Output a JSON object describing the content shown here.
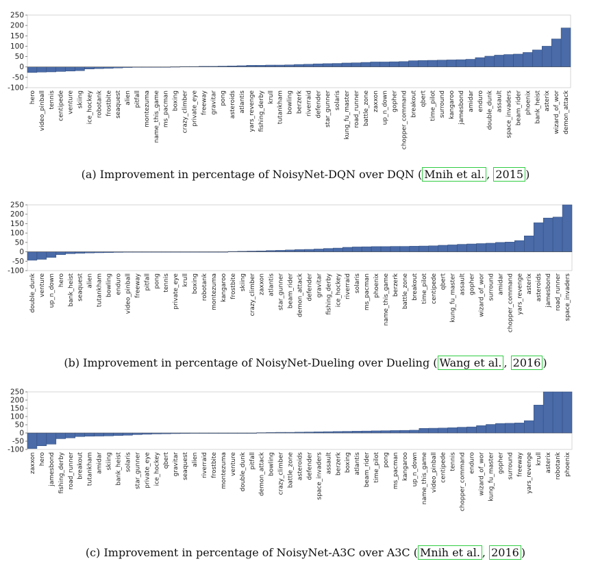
{
  "chart_data": [
    {
      "type": "bar",
      "ylim": [
        -100,
        250
      ],
      "yticks": [
        -100,
        -50,
        0,
        50,
        100,
        150,
        200,
        250
      ],
      "bar_color": "#4a6ba8",
      "caption": {
        "prefix": "(a) Improvement in percentage of NoisyNet-DQN over DQN (",
        "cite": [
          "Mnih et al.",
          "2015"
        ],
        "suffix": ")"
      },
      "categories": [
        "hero",
        "video_pinball",
        "tennis",
        "centipede",
        "venture",
        "skiing",
        "ice_hockey",
        "robotank",
        "frostbite",
        "seaquest",
        "alien",
        "pitfall",
        "montezuma",
        "name_this_game",
        "ms_pacman",
        "boxing",
        "crazy_climber",
        "private_eye",
        "freeway",
        "gravitar",
        "pong",
        "asteroids",
        "atlantis",
        "yars_revenge",
        "fishing_derby",
        "krull",
        "tutankham",
        "bowling",
        "berzerk",
        "riverraid",
        "defender",
        "star_gunner",
        "solaris",
        "kung_fu_master",
        "road_runner",
        "battle_zone",
        "zaxxon",
        "up_n_down",
        "gopher",
        "chopper_command",
        "breakout",
        "qbert",
        "time_pilot",
        "surround",
        "kangaroo",
        "jamesbond",
        "amidar",
        "enduro",
        "double_dunk",
        "assault",
        "space_invaders",
        "beam_rider",
        "phoenix",
        "bank_heist",
        "asterix",
        "wizard_of_wor",
        "demon_attack"
      ],
      "values": [
        -27,
        -25,
        -24,
        -22,
        -20,
        -18,
        -10,
        -8,
        -7,
        -5,
        -3,
        -1,
        0,
        0,
        0,
        1,
        2,
        2,
        3,
        3,
        4,
        5,
        6,
        8,
        8,
        9,
        9,
        10,
        12,
        13,
        15,
        16,
        17,
        19,
        20,
        22,
        24,
        24,
        25,
        26,
        30,
        31,
        32,
        33,
        34,
        35,
        37,
        45,
        52,
        57,
        60,
        62,
        70,
        82,
        100,
        135,
        188
      ]
    },
    {
      "type": "bar",
      "ylim": [
        -100,
        250
      ],
      "yticks": [
        -100,
        -50,
        0,
        50,
        100,
        150,
        200,
        250
      ],
      "bar_color": "#4a6ba8",
      "caption": {
        "prefix": "(b) Improvement in percentage of NoisyNet-Dueling over Dueling (",
        "cite": [
          "Wang et al.",
          "2016"
        ],
        "suffix": ")"
      },
      "categories": [
        "double_dunk",
        "venture",
        "up_n_down",
        "hero",
        "bank_heist",
        "seaquest",
        "alien",
        "tutankham",
        "bowling",
        "enduro",
        "video_pinball",
        "freeway",
        "pitfall",
        "pong",
        "tennis",
        "private_eye",
        "krull",
        "boxing",
        "robotank",
        "montezuma",
        "kangaroo",
        "frostbite",
        "skiing",
        "crazy_climber",
        "zaxxon",
        "atlantis",
        "star_gunner",
        "beam_rider",
        "demon_attack",
        "defender",
        "gravitar",
        "fishing_derby",
        "ice_hockey",
        "riverraid",
        "solaris",
        "ms_pacman",
        "phoenix",
        "name_this_game",
        "berzerk",
        "battle_zone",
        "breakout",
        "time_pilot",
        "centipede",
        "qbert",
        "kung_fu_master",
        "assault",
        "gopher",
        "wizard_of_wor",
        "surround",
        "amidar",
        "chopper_command",
        "yars_revenge",
        "asterix",
        "asteroids",
        "jamesbond",
        "road_runner",
        "space_invaders"
      ],
      "values": [
        -45,
        -40,
        -30,
        -15,
        -10,
        -8,
        -6,
        -5,
        -4,
        -3,
        -2,
        -1,
        0,
        0,
        0,
        0,
        0,
        0,
        0,
        0,
        0,
        2,
        3,
        4,
        5,
        7,
        8,
        10,
        12,
        13,
        15,
        18,
        20,
        24,
        26,
        27,
        28,
        28,
        29,
        29,
        30,
        31,
        32,
        35,
        37,
        40,
        42,
        44,
        46,
        50,
        52,
        60,
        85,
        155,
        180,
        185,
        250
      ]
    },
    {
      "type": "bar",
      "ylim": [
        -100,
        250
      ],
      "yticks": [
        -100,
        -50,
        0,
        50,
        100,
        150,
        200,
        250
      ],
      "bar_color": "#4a6ba8",
      "caption": {
        "prefix": "(c) Improvement in percentage of NoisyNet-A3C over A3C (",
        "cite": [
          "Mnih et al.",
          "2016"
        ],
        "suffix": ")"
      },
      "categories": [
        "zaxxon",
        "hero",
        "jamesbond",
        "fishing_derby",
        "road_runner",
        "breakout",
        "tutankham",
        "amidar",
        "skiing",
        "bank_heist",
        "solaris",
        "star_gunner",
        "private_eye",
        "ice_hockey",
        "qbert",
        "gravitar",
        "seaquest",
        "alien",
        "riverraid",
        "frostbite",
        "montezuma",
        "venture",
        "double_dunk",
        "pitfall",
        "demon_attack",
        "bowling",
        "crazy_climber",
        "battle_zone",
        "asteroids",
        "defender",
        "space_invaders",
        "assault",
        "berzerk",
        "boxing",
        "atlantis",
        "beam_rider",
        "time_pilot",
        "pong",
        "ms_pacman",
        "kangaroo",
        "up_n_down",
        "name_this_game",
        "video_pinball",
        "centipede",
        "tennis",
        "chopper_command",
        "enduro",
        "wizard_of_wor",
        "kung_fu_master",
        "gopher",
        "surround",
        "freeway",
        "yars_revenge",
        "krull",
        "asterix",
        "robotank",
        "phoenix"
      ],
      "values": [
        -95,
        -78,
        -68,
        -35,
        -30,
        -22,
        -20,
        -19,
        -18,
        -16,
        -14,
        -10,
        -8,
        -6,
        -5,
        -4,
        -3,
        -2,
        -2,
        -1,
        0,
        0,
        0,
        0,
        2,
        3,
        4,
        4,
        5,
        6,
        7,
        8,
        9,
        10,
        11,
        12,
        13,
        14,
        15,
        16,
        17,
        28,
        29,
        30,
        32,
        35,
        37,
        45,
        52,
        58,
        59,
        61,
        75,
        170,
        250,
        250,
        250
      ]
    }
  ]
}
